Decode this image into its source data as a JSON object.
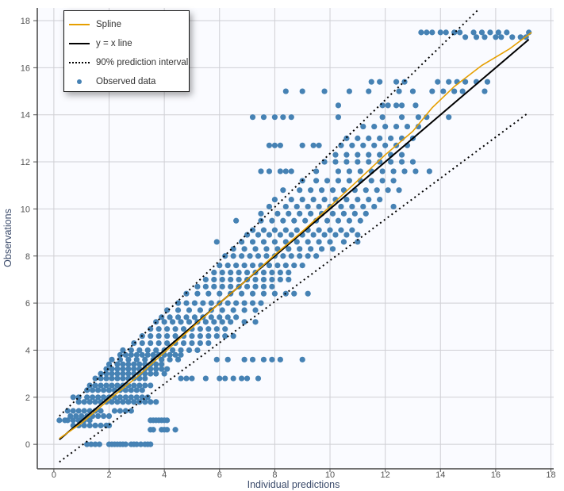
{
  "chart_data": {
    "type": "scatter",
    "xlabel": "Individual predictions",
    "ylabel": "Observations",
    "xlim": [
      -0.6,
      18.1
    ],
    "ylim": [
      -1.04,
      18.54
    ],
    "xticks": [
      "0",
      "2",
      "4",
      "6",
      "8",
      "10",
      "12",
      "14",
      "16",
      "18"
    ],
    "yticks": [
      "0",
      "2",
      "4",
      "6",
      "8",
      "10",
      "12",
      "14",
      "16",
      "18"
    ],
    "grid": true,
    "legend_position": "top-left",
    "colors": {
      "spline": "#e69f00",
      "identity": "#000000",
      "interval": "#000000",
      "observed": "#4682b4",
      "background": "#fafbff",
      "grid": "#cfcfd4"
    },
    "legend": [
      {
        "label": "Spline",
        "kind": "line",
        "color": "#e69f00"
      },
      {
        "label": "y = x line",
        "kind": "line",
        "color": "#000000"
      },
      {
        "label": "90% prediction interval",
        "kind": "dotted",
        "color": "#000000"
      },
      {
        "label": "Observed data",
        "kind": "dot",
        "color": "#4682b4"
      }
    ],
    "identity_line": [
      [
        0.2,
        0.2
      ],
      [
        17.2,
        17.2
      ]
    ],
    "prediction_interval": {
      "upper": [
        [
          0.2,
          1.2
        ],
        [
          15.4,
          18.5
        ]
      ],
      "lower": [
        [
          0.2,
          -0.75
        ],
        [
          17.2,
          14.1
        ]
      ]
    },
    "spline": [
      [
        0.2,
        0.25
      ],
      [
        1,
        0.9
      ],
      [
        2,
        1.9
      ],
      [
        3,
        2.85
      ],
      [
        4,
        3.9
      ],
      [
        5,
        4.95
      ],
      [
        6,
        6.0
      ],
      [
        7,
        7.0
      ],
      [
        8,
        8.05
      ],
      [
        9,
        9.05
      ],
      [
        10,
        10.1
      ],
      [
        11,
        11.2
      ],
      [
        12,
        12.3
      ],
      [
        13,
        13.3
      ],
      [
        13.7,
        14.3
      ],
      [
        14.5,
        15.2
      ],
      [
        15.5,
        16.1
      ],
      [
        16.5,
        16.8
      ],
      [
        17.3,
        17.5
      ]
    ],
    "observed_by_level": [
      {
        "y": 0,
        "x": [
          1.2,
          1.35,
          1.5,
          1.65,
          2.0,
          2.1,
          2.2,
          2.3,
          2.4,
          2.5,
          2.6,
          2.8,
          2.9,
          3.0,
          3.15,
          3.3,
          3.4,
          3.5
        ]
      },
      {
        "y": 0.62,
        "x": [
          3.5,
          3.6,
          3.9,
          4.0,
          4.1,
          4.4
        ]
      },
      {
        "y": 0.8,
        "x": [
          0.7,
          0.9,
          1.1,
          1.3,
          1.5,
          1.7,
          1.9,
          2.0
        ]
      },
      {
        "y": 1.02,
        "x": [
          0.2,
          0.4,
          0.5,
          0.7,
          0.9,
          1.0,
          1.1,
          1.3,
          3.5,
          3.6,
          3.7,
          3.8,
          3.9,
          4.0,
          4.1
        ]
      },
      {
        "y": 1.2,
        "x": [
          0.6,
          0.8,
          1.0,
          1.2,
          1.4,
          1.6,
          1.8,
          2.0
        ]
      },
      {
        "y": 1.42,
        "x": [
          0.5,
          0.7,
          0.9,
          1.1,
          1.3,
          1.5,
          1.7,
          2.2,
          2.4,
          2.6,
          2.8
        ]
      },
      {
        "y": 1.8,
        "x": [
          0.9,
          1.1,
          1.3,
          1.5,
          1.7,
          1.9,
          2.1,
          2.3,
          2.5,
          2.7,
          2.9,
          3.1,
          3.3,
          3.5,
          3.7
        ]
      },
      {
        "y": 2.0,
        "x": [
          0.7,
          0.9,
          1.2,
          1.4,
          1.6,
          1.8,
          2.0,
          2.2,
          2.4,
          2.6,
          2.8,
          3.0,
          3.2,
          3.4
        ]
      },
      {
        "y": 2.3,
        "x": [
          1.2,
          1.4,
          1.6,
          1.8,
          2.0,
          2.2,
          2.4,
          2.6,
          2.8,
          3.0,
          3.2
        ]
      },
      {
        "y": 2.5,
        "x": [
          1.3,
          1.5,
          1.7,
          1.9,
          2.1,
          2.3,
          2.5,
          2.7,
          2.9,
          3.1,
          3.3,
          3.5
        ]
      },
      {
        "y": 2.8,
        "x": [
          1.5,
          1.7,
          1.9,
          2.1,
          2.3,
          2.5,
          2.7,
          2.9,
          3.1,
          3.3,
          4.6,
          4.8,
          5.0,
          5.5,
          6.0,
          6.2,
          6.5,
          6.8,
          7.0,
          7.4
        ]
      },
      {
        "y": 3.0,
        "x": [
          1.7,
          1.9,
          2.1,
          2.3,
          2.5,
          2.7,
          2.9,
          3.1,
          3.3,
          3.5,
          3.7,
          4.0
        ]
      },
      {
        "y": 3.2,
        "x": [
          1.9,
          2.1,
          2.3,
          2.5,
          2.7,
          2.9,
          3.1,
          3.3,
          3.5,
          3.7,
          3.9,
          4.1
        ]
      },
      {
        "y": 3.4,
        "x": [
          2.0,
          2.3,
          2.5,
          2.7,
          2.9,
          3.1,
          3.3,
          3.5,
          3.7,
          3.9
        ]
      },
      {
        "y": 3.6,
        "x": [
          2.1,
          2.4,
          2.7,
          3.0,
          3.3,
          3.6,
          3.9,
          4.2,
          4.5,
          5.9,
          6.3,
          6.9,
          7.2,
          7.6,
          7.9,
          8.2,
          9.0
        ]
      },
      {
        "y": 3.8,
        "x": [
          2.4,
          2.6,
          2.8,
          3.0,
          3.2,
          3.4,
          3.6,
          3.8,
          4.0,
          4.2,
          4.4,
          4.6
        ]
      },
      {
        "y": 4.0,
        "x": [
          2.5,
          2.8,
          3.1,
          3.4,
          3.7,
          4.0,
          4.3,
          4.6,
          4.9,
          5.2
        ]
      },
      {
        "y": 4.3,
        "x": [
          2.9,
          3.2,
          3.5,
          3.8,
          4.1,
          4.4,
          4.7,
          5.0,
          5.3,
          5.6
        ]
      },
      {
        "y": 4.6,
        "x": [
          3.2,
          3.5,
          3.8,
          4.1,
          4.4,
          4.7,
          5.0,
          5.3,
          5.6,
          5.9,
          6.2,
          6.5
        ]
      },
      {
        "y": 4.9,
        "x": [
          3.5,
          3.8,
          4.1,
          4.4,
          4.7,
          5.0,
          5.3,
          5.6,
          5.9,
          6.2
        ]
      },
      {
        "y": 5.2,
        "x": [
          3.7,
          4.0,
          4.3,
          4.6,
          4.9,
          5.2,
          5.5,
          5.8,
          6.1,
          6.4,
          6.9,
          7.3
        ]
      },
      {
        "y": 5.4,
        "x": [
          3.9,
          4.2,
          4.5,
          4.8,
          5.1,
          5.4,
          5.7,
          6.0,
          6.3,
          6.6
        ]
      },
      {
        "y": 5.7,
        "x": [
          4.1,
          4.5,
          4.9,
          5.3,
          5.7,
          6.1,
          6.5,
          6.9,
          7.3
        ]
      },
      {
        "y": 6.0,
        "x": [
          4.5,
          4.8,
          5.1,
          5.4,
          5.7,
          6.0,
          6.3,
          6.6,
          6.9,
          7.2,
          7.5
        ]
      },
      {
        "y": 6.4,
        "x": [
          4.8,
          5.2,
          5.6,
          6.0,
          6.4,
          6.8,
          7.2,
          7.6,
          8.0,
          8.4,
          8.7,
          9.2
        ]
      },
      {
        "y": 6.7,
        "x": [
          5.2,
          5.5,
          5.8,
          6.1,
          6.4,
          6.7,
          7.0,
          7.3,
          7.6,
          7.9
        ]
      },
      {
        "y": 7.0,
        "x": [
          5.5,
          5.8,
          6.1,
          6.4,
          6.7,
          7.0,
          7.3,
          7.6,
          7.9,
          8.2,
          8.5
        ]
      },
      {
        "y": 7.3,
        "x": [
          5.8,
          6.1,
          6.4,
          6.7,
          7.0,
          7.3,
          7.6,
          7.9,
          8.2,
          8.5
        ]
      },
      {
        "y": 7.6,
        "x": [
          6.0,
          6.3,
          6.6,
          6.9,
          7.2,
          7.5,
          7.8,
          8.1,
          8.4,
          8.7,
          9.0
        ]
      },
      {
        "y": 8.0,
        "x": [
          6.2,
          6.5,
          6.8,
          7.1,
          7.4,
          7.7,
          8.0,
          8.3,
          8.6,
          8.9,
          9.2,
          9.5
        ]
      },
      {
        "y": 8.3,
        "x": [
          6.5,
          6.9,
          7.3,
          7.7,
          8.1,
          8.5,
          8.9,
          9.3,
          9.7,
          10.1
        ]
      },
      {
        "y": 8.6,
        "x": [
          5.9,
          6.8,
          7.2,
          7.6,
          8.0,
          8.4,
          8.8,
          9.2,
          9.6,
          10.0,
          10.5,
          11.0
        ]
      },
      {
        "y": 8.9,
        "x": [
          7.0,
          7.4,
          7.8,
          8.2,
          8.6,
          9.0,
          9.4,
          9.8,
          10.2,
          10.6,
          11.0
        ]
      },
      {
        "y": 9.1,
        "x": [
          7.2,
          7.6,
          8.0,
          8.4,
          8.8,
          9.2,
          9.6,
          10.0,
          10.4,
          10.8
        ]
      },
      {
        "y": 9.5,
        "x": [
          6.6,
          7.5,
          7.9,
          8.3,
          8.7,
          9.1,
          9.5,
          9.9,
          10.3,
          10.7,
          11.1
        ]
      },
      {
        "y": 9.8,
        "x": [
          7.5,
          8.1,
          8.5,
          8.9,
          9.3,
          9.7,
          10.1,
          10.5,
          10.9,
          11.3
        ]
      },
      {
        "y": 10.1,
        "x": [
          7.8,
          8.4,
          8.8,
          9.2,
          9.6,
          10.0,
          10.4,
          10.8,
          11.2,
          11.6,
          12.3
        ]
      },
      {
        "y": 10.4,
        "x": [
          8.0,
          8.6,
          9.0,
          9.4,
          9.8,
          10.2,
          10.6,
          11.0,
          11.4,
          11.8
        ]
      },
      {
        "y": 10.8,
        "x": [
          8.3,
          8.9,
          9.3,
          9.7,
          10.1,
          10.5,
          10.9,
          11.3,
          11.7,
          12.1,
          12.5
        ]
      },
      {
        "y": 11.2,
        "x": [
          9.0,
          9.5,
          9.9,
          10.3,
          10.7,
          11.1,
          11.5,
          11.9,
          12.3
        ]
      },
      {
        "y": 11.6,
        "x": [
          7.5,
          7.8,
          8.2,
          8.4,
          8.6,
          9.5,
          10.3,
          10.7,
          11.1,
          11.5,
          11.9,
          12.3,
          12.7,
          13.1,
          13.6
        ]
      },
      {
        "y": 12.0,
        "x": [
          9.8,
          10.2,
          10.6,
          11.0,
          11.4,
          11.8,
          12.2,
          12.6,
          13.0
        ]
      },
      {
        "y": 12.3,
        "x": [
          10.2,
          10.6,
          11.0,
          11.4,
          11.8,
          12.2,
          12.6
        ]
      },
      {
        "y": 12.7,
        "x": [
          7.8,
          8.0,
          8.2,
          9.0,
          9.4,
          9.6,
          10.4,
          10.8,
          11.2,
          11.6,
          12.0,
          12.4,
          12.8
        ]
      },
      {
        "y": 13.0,
        "x": [
          10.6,
          11.0,
          11.4,
          11.8,
          12.2,
          12.6,
          13.0
        ]
      },
      {
        "y": 13.5,
        "x": [
          11.2,
          11.6,
          12.0,
          12.4,
          12.8,
          13.2
        ]
      },
      {
        "y": 13.9,
        "x": [
          7.2,
          7.6,
          8.0,
          8.3,
          8.6,
          10.3,
          11.9,
          12.6,
          13.2,
          13.5,
          14.3
        ]
      },
      {
        "y": 14.4,
        "x": [
          10.3,
          11.9,
          12.1,
          12.4,
          12.6,
          13.1
        ]
      },
      {
        "y": 15.0,
        "x": [
          8.4,
          9.0,
          9.8,
          10.7,
          11.4,
          12.5,
          13.0,
          13.7,
          14.1,
          14.5,
          14.8,
          15.6
        ]
      },
      {
        "y": 15.4,
        "x": [
          11.5,
          11.8,
          12.4,
          12.7,
          13.9,
          14.3,
          14.6,
          14.9,
          15.3,
          15.7
        ]
      },
      {
        "y": 17.3,
        "x": [
          14.9,
          15.3,
          15.6,
          16.0,
          16.2,
          16.6,
          16.9,
          17.1
        ]
      },
      {
        "y": 17.5,
        "x": [
          13.3,
          13.5,
          13.7,
          14.0,
          14.2,
          14.5,
          14.7,
          15.2,
          15.5,
          15.8,
          16.1,
          16.4,
          17.2
        ]
      }
    ]
  }
}
